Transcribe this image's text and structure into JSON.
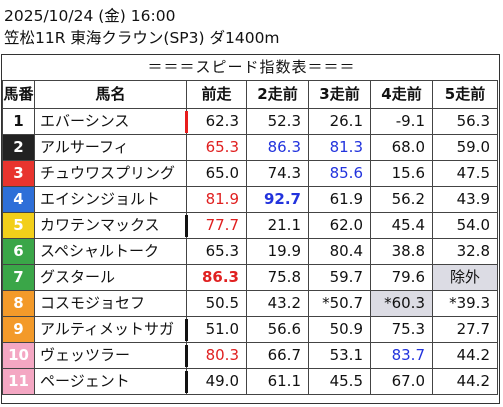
{
  "header": {
    "line1": "2025/10/24 (金) 16:00",
    "line2": "笠松11R 東海クラウン(SP3) ダ1400m",
    "subtitle": "＝＝＝スピード指数表＝＝＝"
  },
  "table": {
    "columns": [
      "馬番",
      "馬名",
      "前走",
      "2走前",
      "3走前",
      "4走前",
      "5走前"
    ],
    "rows": [
      {
        "no": "1",
        "bg": "#ffffff",
        "fg": "#111111",
        "name": "エバーシンス",
        "mark": "#e81c1c",
        "cells": [
          {
            "v": "62.3"
          },
          {
            "v": "52.3"
          },
          {
            "v": "26.1"
          },
          {
            "v": "-9.1"
          },
          {
            "v": "56.3"
          }
        ]
      },
      {
        "no": "2",
        "bg": "#222222",
        "fg": "#ffffff",
        "name": "アルサーフィ",
        "mark": "",
        "cells": [
          {
            "v": "65.3",
            "color": "#e02020"
          },
          {
            "v": "86.3",
            "color": "#2233dd"
          },
          {
            "v": "81.3",
            "color": "#2233dd"
          },
          {
            "v": "68.0"
          },
          {
            "v": "59.0"
          }
        ]
      },
      {
        "no": "3",
        "bg": "#e8342e",
        "fg": "#ffffff",
        "name": "チュウワスプリング",
        "mark": "",
        "cells": [
          {
            "v": "65.0"
          },
          {
            "v": "74.3"
          },
          {
            "v": "85.6",
            "color": "#2233dd"
          },
          {
            "v": "15.6"
          },
          {
            "v": "47.5"
          }
        ]
      },
      {
        "no": "4",
        "bg": "#2e6fd8",
        "fg": "#ffffff",
        "name": "エイシンジョルト",
        "mark": "",
        "cells": [
          {
            "v": "81.9",
            "color": "#e02020"
          },
          {
            "v": "92.7",
            "color": "#2233dd",
            "bold": true
          },
          {
            "v": "61.9"
          },
          {
            "v": "56.2"
          },
          {
            "v": "43.9"
          }
        ]
      },
      {
        "no": "5",
        "bg": "#f2cf1a",
        "fg": "#ffffff",
        "name": "カワテンマックス",
        "mark": "#111111",
        "cells": [
          {
            "v": "77.7",
            "color": "#e02020"
          },
          {
            "v": "21.1"
          },
          {
            "v": "62.0"
          },
          {
            "v": "45.4"
          },
          {
            "v": "54.0"
          }
        ]
      },
      {
        "no": "6",
        "bg": "#3aa648",
        "fg": "#ffffff",
        "name": "スペシャルトーク",
        "mark": "",
        "cells": [
          {
            "v": "65.3"
          },
          {
            "v": "19.9"
          },
          {
            "v": "80.4"
          },
          {
            "v": "38.8"
          },
          {
            "v": "32.8"
          }
        ]
      },
      {
        "no": "7",
        "bg": "#3aa648",
        "fg": "#ffffff",
        "name": "グスタール",
        "mark": "",
        "cells": [
          {
            "v": "86.3",
            "color": "#e02020",
            "bold": true
          },
          {
            "v": "75.8"
          },
          {
            "v": "59.7"
          },
          {
            "v": "79.6"
          },
          {
            "v": "除外",
            "bg": "#dcdce4",
            "center": true
          }
        ]
      },
      {
        "no": "8",
        "bg": "#f39a2a",
        "fg": "#ffffff",
        "name": "コスモジョセフ",
        "mark": "",
        "cells": [
          {
            "v": "50.5"
          },
          {
            "v": "43.2"
          },
          {
            "v": "*50.7"
          },
          {
            "v": "*60.3",
            "bg": "#dcdce4"
          },
          {
            "v": "*39.3"
          }
        ]
      },
      {
        "no": "9",
        "bg": "#f39a2a",
        "fg": "#ffffff",
        "name": "アルティメットサガ",
        "mark": "#111111",
        "cells": [
          {
            "v": "51.0"
          },
          {
            "v": "56.6"
          },
          {
            "v": "50.9"
          },
          {
            "v": "75.3"
          },
          {
            "v": "27.7"
          }
        ]
      },
      {
        "no": "10",
        "bg": "#f4a7c3",
        "fg": "#ffffff",
        "name": "ヴェッツラー",
        "mark": "#111111",
        "cells": [
          {
            "v": "80.3",
            "color": "#e02020"
          },
          {
            "v": "66.7"
          },
          {
            "v": "53.1"
          },
          {
            "v": "83.7",
            "color": "#2233dd"
          },
          {
            "v": "44.2"
          }
        ]
      },
      {
        "no": "11",
        "bg": "#f4a7c3",
        "fg": "#ffffff",
        "name": "ページェント",
        "mark": "#111111",
        "cells": [
          {
            "v": "49.0"
          },
          {
            "v": "61.1"
          },
          {
            "v": "45.5"
          },
          {
            "v": "67.0"
          },
          {
            "v": "44.2"
          }
        ]
      }
    ]
  }
}
